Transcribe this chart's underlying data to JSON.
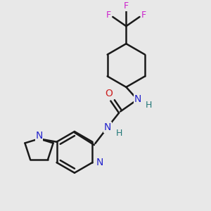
{
  "background_color": "#e8e8e8",
  "bond_color": "#1a1a1a",
  "bond_width": 1.8,
  "N_color": "#2222cc",
  "O_color": "#cc2222",
  "F_color": "#cc22cc",
  "H_color": "#227777",
  "figsize": [
    3.0,
    3.0
  ],
  "dpi": 100,
  "xlim": [
    0,
    10
  ],
  "ylim": [
    0,
    10
  ]
}
